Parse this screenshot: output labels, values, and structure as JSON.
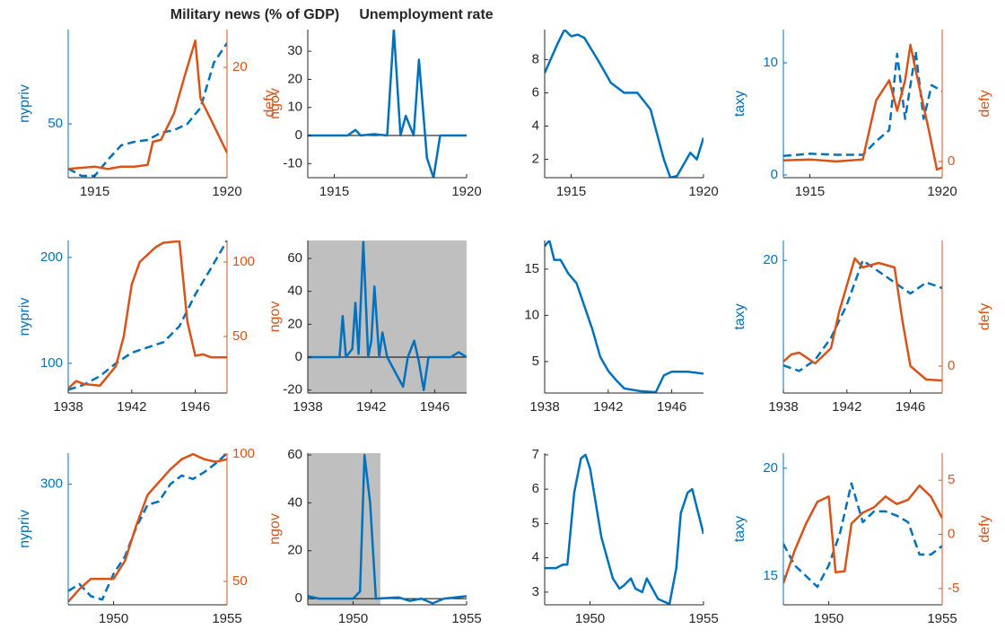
{
  "chart_data": [
    {
      "type": "line",
      "xlim": [
        1914,
        1920
      ],
      "xticks": [
        1915,
        1920
      ],
      "ylim": [
        38,
        71
      ],
      "yticks": [
        50
      ],
      "y2lim": [
        1,
        26.5
      ],
      "y2ticks": [
        20
      ],
      "y_label": "nypriv",
      "y2_label": "defy",
      "y_color": "#0072BD",
      "y2_color": "#D95319",
      "series": [
        {
          "color": "#0072BD",
          "style": "dashed",
          "x": [
            1914,
            1914.5,
            1915,
            1915.5,
            1916,
            1916.5,
            1917,
            1917.5,
            1918,
            1918.5,
            1919,
            1919.5,
            1920
          ],
          "values": [
            40,
            38.4,
            38.4,
            42,
            45.2,
            46,
            46.4,
            48,
            48.6,
            50,
            53.6,
            63.6,
            68
          ]
        },
        {
          "color": "#D95319",
          "style": "solid",
          "axis": "y2",
          "x": [
            1914,
            1915,
            1915.5,
            1916,
            1916.5,
            1917,
            1917.2,
            1917.5,
            1918,
            1918.4,
            1918.8,
            1919,
            1919.5,
            1920
          ],
          "values": [
            2.5,
            2.9,
            2.5,
            2.9,
            2.9,
            3.2,
            7.2,
            7.5,
            12.1,
            18.5,
            24.6,
            14.6,
            10,
            5.3
          ]
        }
      ]
    },
    {
      "type": "line",
      "title": "Military news (% of GDP)",
      "xlim": [
        1914,
        1920
      ],
      "xticks": [
        1915,
        1920
      ],
      "ylim": [
        -15,
        37.7
      ],
      "yticks": [
        -10,
        0,
        10,
        20,
        30
      ],
      "y_label": "ngov",
      "y_label_color": "#D95319",
      "zero_line": true,
      "series": [
        {
          "color": "#0072BD",
          "style": "solid",
          "x": [
            1914,
            1915.5,
            1915.8,
            1916,
            1916.5,
            1917,
            1917.25,
            1917.5,
            1917.7,
            1918,
            1918.2,
            1918.5,
            1918.75,
            1919,
            1920
          ],
          "values": [
            0,
            0,
            2,
            0,
            0.5,
            0,
            37.7,
            0,
            7,
            0,
            27,
            -8,
            -15,
            0,
            0
          ]
        }
      ]
    },
    {
      "type": "line",
      "title": "Unemployment rate",
      "xlim": [
        1914,
        1920
      ],
      "xticks": [
        1915,
        1920
      ],
      "ylim": [
        0.9,
        9.8
      ],
      "yticks": [
        2,
        4,
        6,
        8
      ],
      "series": [
        {
          "color": "#0072BD",
          "style": "solid",
          "x": [
            1914,
            1914.5,
            1914.75,
            1915,
            1915.25,
            1915.5,
            1916,
            1916.5,
            1917,
            1917.5,
            1918,
            1918.5,
            1918.75,
            1919,
            1919.5,
            1919.75,
            1920
          ],
          "values": [
            7.2,
            9,
            9.8,
            9.4,
            9.5,
            9.3,
            8,
            6.6,
            6,
            6,
            5,
            2,
            0.9,
            1,
            2.4,
            2,
            3.3
          ]
        }
      ]
    },
    {
      "type": "line",
      "xlim": [
        1914,
        1920
      ],
      "xticks": [
        1915,
        1920
      ],
      "ylim": [
        -0.24,
        12.96
      ],
      "yticks": [
        0,
        10
      ],
      "y2lim": [
        -1.6,
        13
      ],
      "y2ticks": [
        0
      ],
      "y_label": "taxy",
      "y2_label": "defy",
      "y_color": "#0072BD",
      "y2_color": "#D95319",
      "series": [
        {
          "color": "#0072BD",
          "style": "dashed",
          "x": [
            1914,
            1915,
            1916,
            1917,
            1917.5,
            1918,
            1918.3,
            1918.6,
            1919,
            1919.3,
            1919.6,
            1920
          ],
          "values": [
            1.7,
            1.9,
            1.8,
            1.8,
            3,
            4,
            10.8,
            5,
            11,
            5,
            8,
            7.5
          ]
        },
        {
          "color": "#D95319",
          "style": "solid",
          "axis": "y2",
          "x": [
            1914,
            1915,
            1916,
            1917,
            1917.5,
            1918,
            1918.3,
            1918.6,
            1918.8,
            1919,
            1919.5,
            1919.8,
            1920
          ],
          "values": [
            0.1,
            0.2,
            0,
            0.2,
            6,
            8,
            5,
            8,
            11.5,
            9,
            3,
            -0.8,
            -0.6
          ]
        }
      ]
    },
    {
      "type": "line",
      "xlim": [
        1938,
        1948
      ],
      "xticks": [
        1938,
        1942,
        1946
      ],
      "ylim": [
        72,
        216
      ],
      "yticks": [
        100,
        200
      ],
      "y2lim": [
        12,
        114.5
      ],
      "y2ticks": [
        50,
        100
      ],
      "y_label": "nypriv",
      "y_color": "#0072BD",
      "y2_color": "#D95319",
      "series": [
        {
          "color": "#0072BD",
          "style": "dashed",
          "x": [
            1938,
            1939,
            1940,
            1941,
            1942,
            1943,
            1944,
            1945,
            1946,
            1947,
            1948
          ],
          "values": [
            75,
            80,
            88,
            100,
            110,
            115,
            120,
            135,
            165,
            190,
            216
          ]
        },
        {
          "color": "#D95319",
          "style": "solid",
          "axis": "y2",
          "x": [
            1938,
            1938.5,
            1939,
            1940,
            1941,
            1941.5,
            1942,
            1942.5,
            1943,
            1943.5,
            1944,
            1945,
            1945.5,
            1946,
            1946.5,
            1947,
            1948
          ],
          "values": [
            15,
            20,
            18,
            17,
            30,
            50,
            85,
            100,
            105,
            110,
            113,
            114,
            60,
            37,
            38,
            36,
            36
          ]
        }
      ]
    },
    {
      "type": "line",
      "xlim": [
        1938,
        1948
      ],
      "xticks": [
        1938,
        1942,
        1946
      ],
      "ylim": [
        -21.8,
        70.9
      ],
      "yticks": [
        -20,
        0,
        20,
        40,
        60
      ],
      "y_label": "ngov",
      "y_label_color": "#D95319",
      "zero_line": true,
      "shaded": [
        1938,
        1948
      ],
      "series": [
        {
          "color": "#0072BD",
          "style": "solid",
          "x": [
            1938,
            1940,
            1940.2,
            1940.4,
            1940.8,
            1941,
            1941.2,
            1941.5,
            1941.8,
            1942,
            1942.2,
            1942.5,
            1942.7,
            1943,
            1944,
            1944.3,
            1944.7,
            1945,
            1945.3,
            1945.6,
            1946,
            1947,
            1947.5,
            1948
          ],
          "values": [
            0,
            0,
            25,
            0,
            5,
            33,
            2,
            70,
            0,
            10,
            43,
            0,
            15,
            0,
            -18,
            0,
            10,
            -3,
            -20,
            0,
            0,
            0,
            3,
            0
          ]
        }
      ]
    },
    {
      "type": "line",
      "xlim": [
        1938,
        1948
      ],
      "xticks": [
        1938,
        1942,
        1946
      ],
      "ylim": [
        1.6,
        18.1
      ],
      "yticks": [
        5,
        10,
        15
      ],
      "series": [
        {
          "color": "#0072BD",
          "style": "solid",
          "x": [
            1938,
            1938.3,
            1938.6,
            1939,
            1939.5,
            1940,
            1940.5,
            1941,
            1941.5,
            1942,
            1942.5,
            1943,
            1944,
            1945,
            1945.5,
            1946,
            1947,
            1948
          ],
          "values": [
            17.5,
            18.1,
            16,
            16,
            14.5,
            13.5,
            11,
            8.5,
            5.5,
            4,
            3,
            2.1,
            1.8,
            1.7,
            3.5,
            3.9,
            3.9,
            3.7
          ]
        }
      ]
    },
    {
      "type": "line",
      "xlim": [
        1938,
        1948
      ],
      "xticks": [
        1938,
        1942,
        1946
      ],
      "ylim": [
        8,
        21.8
      ],
      "yticks": [
        20
      ],
      "y2lim": [
        -3,
        14
      ],
      "y2ticks": [
        0
      ],
      "y_label": "taxy",
      "y2_label": "defy",
      "y_color": "#0072BD",
      "y2_color": "#D95319",
      "series": [
        {
          "color": "#0072BD",
          "style": "dashed",
          "x": [
            1938,
            1939,
            1940,
            1941,
            1942,
            1943,
            1944,
            1945,
            1946,
            1947,
            1948
          ],
          "values": [
            10.5,
            10,
            11,
            13,
            16,
            20,
            19,
            18,
            17,
            18,
            17.5
          ]
        },
        {
          "color": "#D95319",
          "style": "solid",
          "axis": "y2",
          "x": [
            1938,
            1938.5,
            1939,
            1940,
            1941,
            1941.5,
            1942,
            1942.5,
            1943,
            1944,
            1945,
            1945.5,
            1946,
            1947,
            1948
          ],
          "values": [
            0.5,
            1.3,
            1.5,
            0.3,
            2,
            6,
            9,
            12,
            11,
            11.5,
            11,
            5,
            0,
            -1.5,
            -1.6
          ]
        }
      ]
    },
    {
      "type": "line",
      "xlim": [
        1948,
        1955
      ],
      "xticks": [
        1950,
        1955
      ],
      "ylim": [
        230,
        318
      ],
      "yticks": [
        300
      ],
      "y2lim": [
        40.8,
        100.4
      ],
      "y2ticks": [
        50,
        100
      ],
      "y_label": "nypriv",
      "y_color": "#0072BD",
      "y2_color": "#D95319",
      "series": [
        {
          "color": "#0072BD",
          "style": "dashed",
          "x": [
            1948,
            1948.5,
            1949,
            1949.5,
            1950,
            1950.5,
            1951,
            1951.5,
            1952,
            1952.5,
            1953,
            1953.5,
            1954,
            1954.5,
            1955
          ],
          "values": [
            238,
            242,
            235,
            233,
            248,
            258,
            275,
            288,
            290,
            300,
            305,
            303,
            307,
            312,
            318
          ]
        },
        {
          "color": "#D95319",
          "style": "solid",
          "axis": "y2",
          "x": [
            1948,
            1948.5,
            1949,
            1949.5,
            1950,
            1950.5,
            1951,
            1951.5,
            1952,
            1952.5,
            1953,
            1953.5,
            1954,
            1954.5,
            1955
          ],
          "values": [
            42,
            47,
            51,
            51,
            51,
            58,
            72,
            84,
            89,
            94,
            98,
            100,
            98,
            97,
            98
          ]
        }
      ]
    },
    {
      "type": "line",
      "xlim": [
        1948,
        1955
      ],
      "xticks": [
        1950,
        1955
      ],
      "ylim": [
        -2.6,
        60.75
      ],
      "yticks": [
        0,
        20,
        40,
        60
      ],
      "y_label": "ngov",
      "y_label_color": "#D95319",
      "zero_line": true,
      "shaded": [
        1948,
        1951.2
      ],
      "series": [
        {
          "color": "#0072BD",
          "style": "solid",
          "x": [
            1948,
            1948.5,
            1949,
            1949.5,
            1950,
            1950.3,
            1950.5,
            1950.75,
            1951,
            1952,
            1952.5,
            1953,
            1953.5,
            1954,
            1955
          ],
          "values": [
            1,
            0,
            0,
            0,
            0,
            3,
            60,
            40,
            0,
            0.5,
            -1,
            0,
            -2,
            0,
            1
          ]
        }
      ]
    },
    {
      "type": "line",
      "xlim": [
        1948,
        1955
      ],
      "xticks": [
        1950,
        1955
      ],
      "ylim": [
        2.63,
        7.05
      ],
      "yticks": [
        3,
        4,
        5,
        6,
        7
      ],
      "series": [
        {
          "color": "#0072BD",
          "style": "solid",
          "x": [
            1948,
            1948.5,
            1948.8,
            1949,
            1949.3,
            1949.6,
            1949.8,
            1950,
            1950.5,
            1951,
            1951.3,
            1951.5,
            1951.8,
            1952,
            1952.3,
            1952.5,
            1953,
            1953.5,
            1953.8,
            1954,
            1954.3,
            1954.5,
            1955
          ],
          "values": [
            3.7,
            3.7,
            3.8,
            3.8,
            5.9,
            6.9,
            7,
            6.6,
            4.6,
            3.4,
            3.1,
            3.2,
            3.4,
            3.1,
            3,
            3.4,
            2.8,
            2.65,
            3.7,
            5.3,
            5.9,
            6,
            4.7
          ]
        }
      ]
    },
    {
      "type": "line",
      "xlim": [
        1948,
        1955
      ],
      "xticks": [
        1950,
        1955
      ],
      "ylim": [
        13.67,
        20.7
      ],
      "yticks": [
        15,
        20
      ],
      "y2lim": [
        -6.5,
        7.5
      ],
      "y2ticks": [
        -5,
        0,
        5
      ],
      "y_label": "taxy",
      "y2_label": "defy",
      "y_color": "#0072BD",
      "y2_color": "#D95319",
      "series": [
        {
          "color": "#0072BD",
          "style": "dashed",
          "x": [
            1948,
            1948.5,
            1949,
            1949.5,
            1950,
            1950.5,
            1951,
            1951.5,
            1952,
            1952.5,
            1953,
            1953.5,
            1954,
            1954.5,
            1955
          ],
          "values": [
            16.5,
            15.5,
            15,
            14.5,
            15.5,
            17,
            19.3,
            17.5,
            18,
            18,
            17.8,
            17.5,
            16,
            16,
            16.4
          ]
        },
        {
          "color": "#D95319",
          "style": "solid",
          "axis": "y2",
          "x": [
            1948,
            1948.5,
            1949,
            1949.5,
            1950,
            1950.3,
            1950.7,
            1951,
            1951.5,
            1952,
            1952.5,
            1953,
            1953.5,
            1954,
            1954.5,
            1955
          ],
          "values": [
            -4.5,
            -1.5,
            1,
            3,
            3.5,
            -3.5,
            -3.4,
            1,
            2,
            2.5,
            3.5,
            2.8,
            3.2,
            4.5,
            3.5,
            1.5
          ]
        }
      ]
    }
  ]
}
